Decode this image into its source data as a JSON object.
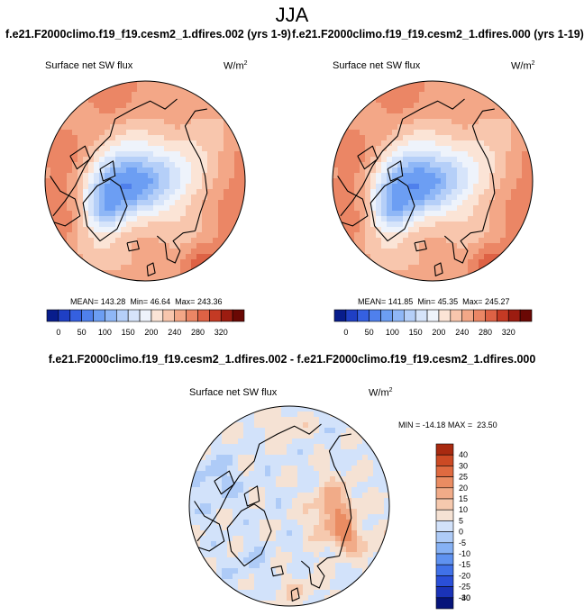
{
  "figure": {
    "title": "JJA",
    "case_titles": [
      "f.e21.F2000climo.f19_f19.cesm2_1.dfires.002 (yrs 1-9)",
      "f.e21.F2000climo.f19_f19.cesm2_1.dfires.000 (yrs 1-19)"
    ],
    "diff_title": "f.e21.F2000climo.f19_f19.cesm2_1.dfires.002 - f.e21.F2000climo.f19_f19.cesm2_1.dfires.000"
  },
  "colors": {
    "abs_palette": [
      "#081d8c",
      "#1f3fc4",
      "#3560e0",
      "#4f80ec",
      "#6c9ef3",
      "#8fb7f6",
      "#b5cff8",
      "#d6e4fa",
      "#eef3fb",
      "#fbe4d6",
      "#f8c6ad",
      "#f3a787",
      "#eb8665",
      "#de6245",
      "#c43a24",
      "#9c1c10",
      "#6a0804"
    ],
    "diff_palette": [
      "#06147a",
      "#1a33b8",
      "#2a4fd8",
      "#4071e8",
      "#5f92f0",
      "#86b1f4",
      "#aecbf7",
      "#d2e2fa",
      "#f5e2d4",
      "#f6c9ae",
      "#f1ab88",
      "#ea8c62",
      "#df6a40",
      "#cc4a24",
      "#a82a10"
    ]
  },
  "chart_data": [
    {
      "type": "map",
      "panel": "case1",
      "projection": "north-polar-stereographic",
      "variable": "Surface net SW flux",
      "units": "W/m",
      "units_exp": "2",
      "stats": {
        "mean_label": "MEAN=",
        "mean": "143.28",
        "min_label": "Min=",
        "min": "46.64",
        "max_label": "Max=",
        "max": "243.36"
      },
      "colorbar_labels": [
        "0",
        "50",
        "100",
        "150",
        "200",
        "240",
        "280",
        "320"
      ]
    },
    {
      "type": "map",
      "panel": "case2",
      "projection": "north-polar-stereographic",
      "variable": "Surface net SW flux",
      "units": "W/m",
      "units_exp": "2",
      "stats": {
        "mean_label": "MEAN=",
        "mean": "141.85",
        "min_label": "Min=",
        "min": "45.35",
        "max_label": "Max=",
        "max": "245.27"
      },
      "colorbar_labels": [
        "0",
        "50",
        "100",
        "150",
        "200",
        "240",
        "280",
        "320"
      ]
    },
    {
      "type": "map",
      "panel": "difference",
      "projection": "north-polar-stereographic",
      "variable": "Surface net SW flux",
      "units": "W/m",
      "units_exp": "2",
      "stats": {
        "min_label": "MIN =",
        "min": "-14.18",
        "max_label": "MAX =",
        "max": "23.50"
      },
      "colorbar_labels": [
        "40",
        "30",
        "25",
        "20",
        "15",
        "10",
        "5",
        "0",
        "-5",
        "-10",
        "-15",
        "-20",
        "-25",
        "-30",
        "-40"
      ]
    }
  ]
}
